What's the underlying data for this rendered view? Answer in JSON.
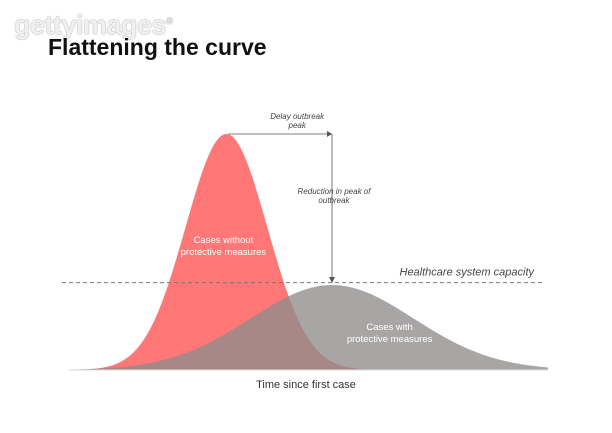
{
  "watermark": "gettyimages",
  "title": "Flattening the curve",
  "colors": {
    "without": "#ff6b6b",
    "with": "#8f8c8c",
    "capacity_line": "#777777",
    "annotation": "#555555"
  },
  "chart_data": {
    "type": "area",
    "title": "Flattening the curve",
    "xlabel": "Time since first case",
    "ylabel": "",
    "grid": false,
    "series": [
      {
        "name": "Cases without protective measures",
        "label_lines": [
          "Cases without",
          "protective measures"
        ],
        "peak_time": 0.33,
        "peak_value": 1.0,
        "spread": 0.085
      },
      {
        "name": "Cases with protective measures",
        "label_lines": [
          "Cases with",
          "protective measures"
        ],
        "peak_time": 0.55,
        "peak_value": 0.36,
        "spread": 0.17
      }
    ],
    "capacity_line": {
      "label": "Healthcare system capacity",
      "value": 0.37
    },
    "annotations": [
      {
        "lines": [
          "Delay outbreak",
          "peak"
        ]
      },
      {
        "lines": [
          "Reduction in peak of",
          "outbreak"
        ]
      }
    ]
  }
}
